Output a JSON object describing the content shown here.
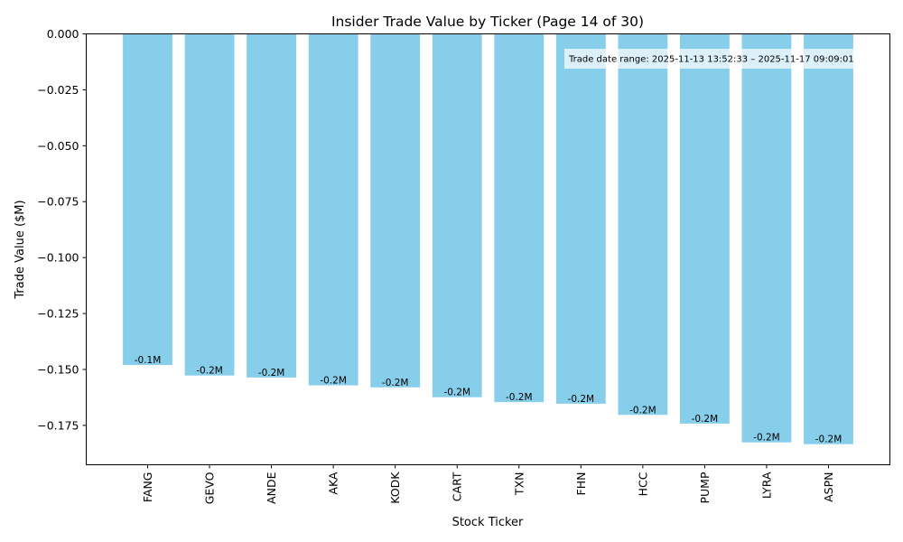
{
  "chart_data": {
    "type": "bar",
    "title": "Insider Trade Value by Ticker (Page 14 of 30)",
    "xlabel": "Stock Ticker",
    "ylabel": "Trade Value ($M)",
    "categories": [
      "FANG",
      "GEVO",
      "ANDE",
      "AKA",
      "KODK",
      "CART",
      "TXN",
      "FHN",
      "HCC",
      "PUMP",
      "LYRA",
      "ASPN"
    ],
    "values": [
      -0.148,
      -0.1527,
      -0.1536,
      -0.1571,
      -0.158,
      -0.1624,
      -0.1646,
      -0.1653,
      -0.1703,
      -0.1742,
      -0.1826,
      -0.1834
    ],
    "data_labels": [
      "-0.1M",
      "-0.2M",
      "-0.2M",
      "-0.2M",
      "-0.2M",
      "-0.2M",
      "-0.2M",
      "-0.2M",
      "-0.2M",
      "-0.2M",
      "-0.2M",
      "-0.2M"
    ],
    "yticks": [
      "0.000",
      "−0.025",
      "−0.050",
      "−0.075",
      "−0.100",
      "−0.125",
      "−0.150",
      "−0.175"
    ],
    "ytick_values": [
      0,
      -0.025,
      -0.05,
      -0.075,
      -0.1,
      -0.125,
      -0.15,
      -0.175
    ],
    "ylim": [
      -0.1926,
      0
    ],
    "bar_color": "#87ceeb",
    "grid": false,
    "annotation": "Trade date range: 2025-11-13 13:52:33 – 2025-11-17 09:09:01"
  }
}
